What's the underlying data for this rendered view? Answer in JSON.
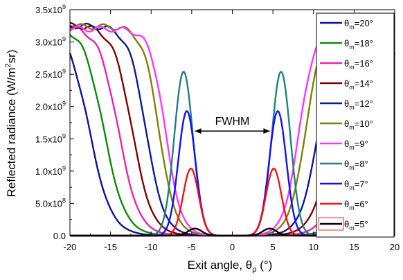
{
  "chart_data": {
    "type": "line",
    "title": "",
    "xlabel": "Exit angle, θ",
    "xlabel_sub": "ρ",
    "xlabel_unit": "(°)",
    "ylabel_prefix": "Reflected radiance (W/m",
    "ylabel_sup": "2",
    "ylabel_suffix": "sr)",
    "xlim": [
      -20,
      20
    ],
    "ylim": [
      0,
      3500000000
    ],
    "x_ticks": [
      -20,
      -15,
      -10,
      -5,
      0,
      5,
      10,
      15,
      20
    ],
    "y_ticks": [
      {
        "value": 0,
        "mant": "0.0",
        "exp": ""
      },
      {
        "value": 500000000,
        "mant": "5.0x10",
        "exp": "8"
      },
      {
        "value": 1000000000,
        "mant": "1.0x10",
        "exp": "9"
      },
      {
        "value": 1500000000,
        "mant": "1.5x10",
        "exp": "9"
      },
      {
        "value": 2000000000,
        "mant": "2.0x10",
        "exp": "9"
      },
      {
        "value": 2500000000,
        "mant": "2.5x10",
        "exp": "9"
      },
      {
        "value": 3000000000,
        "mant": "3.0x10",
        "exp": "9"
      },
      {
        "value": 3500000000,
        "mant": "3.5x10",
        "exp": "9"
      }
    ],
    "grid": false,
    "legend_position": "right",
    "annotation": {
      "text": "FWHM",
      "arrow_from_x": -4.6,
      "arrow_to_x": 4.6,
      "y": 1620000000
    },
    "series": [
      {
        "name_prefix": "θ",
        "name_sub": "m",
        "name_suffix": "=20°",
        "color": "#10109a",
        "plateau": 3280000000,
        "edge": 17.6,
        "width": 1.35
      },
      {
        "name_prefix": "θ",
        "name_sub": "m",
        "name_suffix": "=18°",
        "color": "#0a8a0a",
        "plateau": 3270000000,
        "edge": 15.8,
        "width": 1.3
      },
      {
        "name_prefix": "θ",
        "name_sub": "m",
        "name_suffix": "=16°",
        "color": "#f020b0",
        "plateau": 3260000000,
        "edge": 14.0,
        "width": 1.25
      },
      {
        "name_prefix": "θ",
        "name_sub": "m",
        "name_suffix": "=14°",
        "color": "#800000",
        "plateau": 3260000000,
        "edge": 12.3,
        "width": 1.2
      },
      {
        "name_prefix": "θ",
        "name_sub": "m",
        "name_suffix": "=12°",
        "color": "#0a1a90",
        "plateau": 3250000000,
        "edge": 10.6,
        "width": 1.1
      },
      {
        "name_prefix": "θ",
        "name_sub": "m",
        "name_suffix": "=10°",
        "color": "#808000",
        "plateau": 3240000000,
        "edge": 9.0,
        "width": 1.0
      },
      {
        "name_prefix": "θ",
        "name_sub": "m",
        "name_suffix": "=9°",
        "color": "#ff33ff",
        "plateau": 3200000000,
        "edge": 8.2,
        "width": 0.95
      },
      {
        "name_prefix": "θ",
        "name_sub": "m",
        "name_suffix": "=8°",
        "color": "#208080",
        "peak_x": 6.0,
        "peak": 2540000000,
        "sigma": 1.15
      },
      {
        "name_prefix": "θ",
        "name_sub": "m",
        "name_suffix": "=7°",
        "color": "#1010ff",
        "peak_x": 5.6,
        "peak": 1930000000,
        "sigma": 1.05
      },
      {
        "name_prefix": "θ",
        "name_sub": "m",
        "name_suffix": "=6°",
        "color": "#ff1010",
        "peak_x": 5.1,
        "peak": 1040000000,
        "sigma": 0.95
      },
      {
        "name_prefix": "θ",
        "name_sub": "m",
        "name_suffix": "=5°",
        "color": "#000000",
        "peak_x": 4.6,
        "peak": 110000000,
        "sigma": 0.85
      }
    ]
  }
}
